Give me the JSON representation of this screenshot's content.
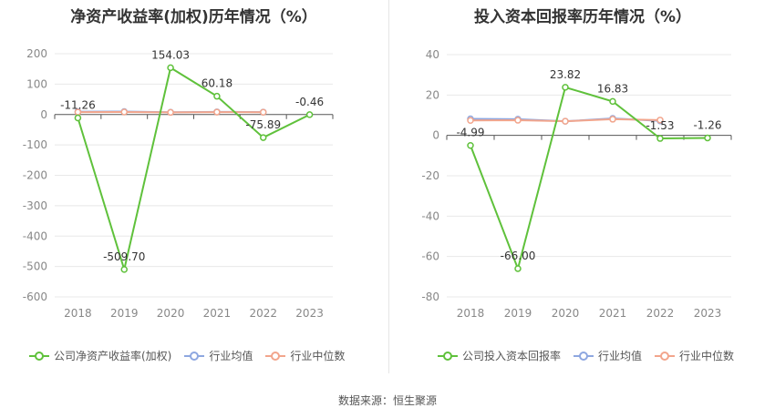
{
  "chart_data": [
    {
      "type": "line",
      "title": "净资产收益率(加权)历年情况（%）",
      "categories": [
        "2018",
        "2019",
        "2020",
        "2021",
        "2022",
        "2023"
      ],
      "ylim": [
        -600,
        200
      ],
      "yticks": [
        200,
        100,
        0,
        -100,
        -200,
        -300,
        -400,
        -500,
        -600
      ],
      "series": [
        {
          "name": "公司净资产收益率(加权)",
          "color": "#5fc13b",
          "values": [
            -11.26,
            -509.7,
            154.03,
            60.18,
            -75.89,
            -0.46
          ],
          "labels": [
            "-11.26",
            "-509.70",
            "154.03",
            "60.18",
            "-75.89",
            "-0.46"
          ]
        },
        {
          "name": "行业均值",
          "color": "#8ea7e0",
          "values": [
            9.5,
            9.8,
            7.5,
            8.8,
            8.0,
            null
          ]
        },
        {
          "name": "行业中位数",
          "color": "#f2a58c",
          "values": [
            8.0,
            8.2,
            7.0,
            8.0,
            7.5,
            null
          ]
        }
      ]
    },
    {
      "type": "line",
      "title": "投入资本回报率历年情况（%）",
      "categories": [
        "2018",
        "2019",
        "2020",
        "2021",
        "2022",
        "2023"
      ],
      "ylim": [
        -80,
        40
      ],
      "yticks": [
        40,
        20,
        0,
        -20,
        -40,
        -60,
        -80
      ],
      "series": [
        {
          "name": "公司投入资本回报率",
          "color": "#5fc13b",
          "values": [
            -4.99,
            -66.0,
            23.82,
            16.83,
            -1.53,
            -1.26
          ],
          "labels": [
            "-4.99",
            "-66.00",
            "23.82",
            "16.83",
            "-1.53",
            "-1.26"
          ]
        },
        {
          "name": "行业均值",
          "color": "#8ea7e0",
          "values": [
            8.2,
            8.0,
            7.0,
            8.4,
            7.2,
            null
          ]
        },
        {
          "name": "行业中位数",
          "color": "#f2a58c",
          "values": [
            7.4,
            7.5,
            7.0,
            8.0,
            7.6,
            null
          ]
        }
      ]
    }
  ],
  "source": "数据来源：恒生聚源"
}
